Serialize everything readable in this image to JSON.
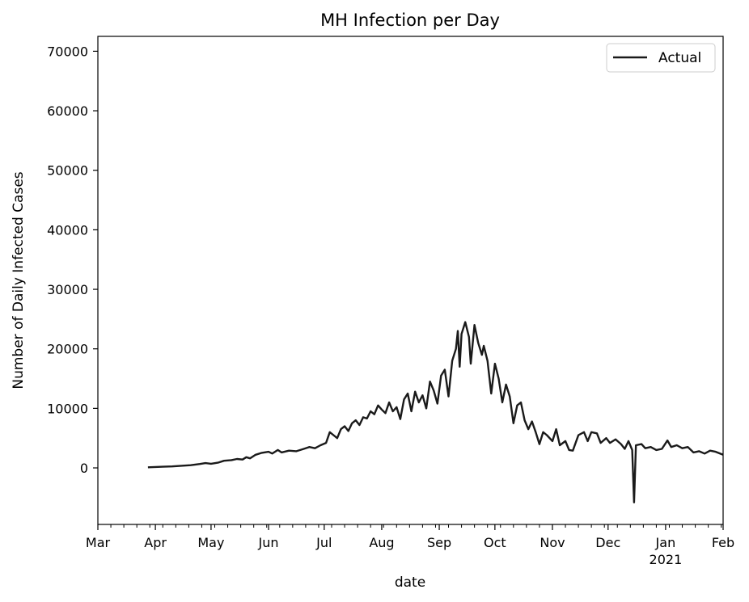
{
  "chart_data": {
    "type": "line",
    "title": "MH Infection per Day",
    "xlabel": "date",
    "ylabel": "Number of Daily Infected Cases",
    "xlim": [
      "2020-03-01",
      "2021-02-01"
    ],
    "ylim": [
      -9500,
      72500
    ],
    "yticks": [
      0,
      10000,
      20000,
      30000,
      40000,
      50000,
      60000,
      70000
    ],
    "ytick_labels": [
      "0",
      "10000",
      "20000",
      "30000",
      "40000",
      "50000",
      "60000",
      "70000"
    ],
    "xticks": [
      {
        "date": "2020-03-01",
        "label": "Mar",
        "sublabel": ""
      },
      {
        "date": "2020-04-01",
        "label": "Apr",
        "sublabel": ""
      },
      {
        "date": "2020-05-01",
        "label": "May",
        "sublabel": ""
      },
      {
        "date": "2020-06-01",
        "label": "Jun",
        "sublabel": ""
      },
      {
        "date": "2020-07-01",
        "label": "Jul",
        "sublabel": ""
      },
      {
        "date": "2020-08-01",
        "label": "Aug",
        "sublabel": ""
      },
      {
        "date": "2020-09-01",
        "label": "Sep",
        "sublabel": ""
      },
      {
        "date": "2020-10-01",
        "label": "Oct",
        "sublabel": ""
      },
      {
        "date": "2020-11-01",
        "label": "Nov",
        "sublabel": ""
      },
      {
        "date": "2020-12-01",
        "label": "Dec",
        "sublabel": ""
      },
      {
        "date": "2021-01-01",
        "label": "Jan",
        "sublabel": "2021"
      },
      {
        "date": "2021-02-01",
        "label": "Feb",
        "sublabel": ""
      }
    ],
    "grid": false,
    "legend_position": "top-right",
    "series": [
      {
        "name": "Actual",
        "color": "#1a1a1a",
        "points": [
          [
            "2020-03-28",
            100
          ],
          [
            "2020-04-01",
            150
          ],
          [
            "2020-04-05",
            200
          ],
          [
            "2020-04-10",
            250
          ],
          [
            "2020-04-15",
            350
          ],
          [
            "2020-04-20",
            450
          ],
          [
            "2020-04-25",
            650
          ],
          [
            "2020-04-28",
            800
          ],
          [
            "2020-05-01",
            700
          ],
          [
            "2020-05-05",
            900
          ],
          [
            "2020-05-08",
            1200
          ],
          [
            "2020-05-12",
            1300
          ],
          [
            "2020-05-15",
            1500
          ],
          [
            "2020-05-18",
            1400
          ],
          [
            "2020-05-20",
            1800
          ],
          [
            "2020-05-22",
            1600
          ],
          [
            "2020-05-25",
            2200
          ],
          [
            "2020-05-28",
            2500
          ],
          [
            "2020-06-01",
            2700
          ],
          [
            "2020-06-03",
            2400
          ],
          [
            "2020-06-06",
            3000
          ],
          [
            "2020-06-08",
            2600
          ],
          [
            "2020-06-12",
            2900
          ],
          [
            "2020-06-16",
            2800
          ],
          [
            "2020-06-20",
            3200
          ],
          [
            "2020-06-23",
            3500
          ],
          [
            "2020-06-26",
            3300
          ],
          [
            "2020-06-29",
            3800
          ],
          [
            "2020-07-02",
            4200
          ],
          [
            "2020-07-04",
            6000
          ],
          [
            "2020-07-06",
            5500
          ],
          [
            "2020-07-08",
            5000
          ],
          [
            "2020-07-10",
            6500
          ],
          [
            "2020-07-12",
            7000
          ],
          [
            "2020-07-14",
            6200
          ],
          [
            "2020-07-16",
            7500
          ],
          [
            "2020-07-18",
            8000
          ],
          [
            "2020-07-20",
            7200
          ],
          [
            "2020-07-22",
            8500
          ],
          [
            "2020-07-24",
            8300
          ],
          [
            "2020-07-26",
            9500
          ],
          [
            "2020-07-28",
            9000
          ],
          [
            "2020-07-30",
            10500
          ],
          [
            "2020-08-01",
            9800
          ],
          [
            "2020-08-03",
            9200
          ],
          [
            "2020-08-05",
            11000
          ],
          [
            "2020-08-07",
            9500
          ],
          [
            "2020-08-09",
            10200
          ],
          [
            "2020-08-11",
            8200
          ],
          [
            "2020-08-13",
            11500
          ],
          [
            "2020-08-15",
            12500
          ],
          [
            "2020-08-17",
            9500
          ],
          [
            "2020-08-19",
            12800
          ],
          [
            "2020-08-21",
            11000
          ],
          [
            "2020-08-23",
            12200
          ],
          [
            "2020-08-25",
            10000
          ],
          [
            "2020-08-27",
            14500
          ],
          [
            "2020-08-29",
            13000
          ],
          [
            "2020-08-31",
            10800
          ],
          [
            "2020-09-02",
            15500
          ],
          [
            "2020-09-04",
            16500
          ],
          [
            "2020-09-06",
            12000
          ],
          [
            "2020-09-08",
            18000
          ],
          [
            "2020-09-10",
            20000
          ],
          [
            "2020-09-11",
            23000
          ],
          [
            "2020-09-12",
            17000
          ],
          [
            "2020-09-13",
            22500
          ],
          [
            "2020-09-15",
            24500
          ],
          [
            "2020-09-17",
            22000
          ],
          [
            "2020-09-18",
            17500
          ],
          [
            "2020-09-20",
            24000
          ],
          [
            "2020-09-22",
            21000
          ],
          [
            "2020-09-24",
            19000
          ],
          [
            "2020-09-25",
            20500
          ],
          [
            "2020-09-27",
            18000
          ],
          [
            "2020-09-29",
            12500
          ],
          [
            "2020-10-01",
            17500
          ],
          [
            "2020-10-03",
            15000
          ],
          [
            "2020-10-05",
            11000
          ],
          [
            "2020-10-07",
            14000
          ],
          [
            "2020-10-09",
            12000
          ],
          [
            "2020-10-11",
            7500
          ],
          [
            "2020-10-13",
            10500
          ],
          [
            "2020-10-15",
            11000
          ],
          [
            "2020-10-17",
            8000
          ],
          [
            "2020-10-19",
            6500
          ],
          [
            "2020-10-21",
            7800
          ],
          [
            "2020-10-23",
            6000
          ],
          [
            "2020-10-25",
            4000
          ],
          [
            "2020-10-27",
            6000
          ],
          [
            "2020-10-29",
            5500
          ],
          [
            "2020-11-01",
            4500
          ],
          [
            "2020-11-03",
            6500
          ],
          [
            "2020-11-05",
            3800
          ],
          [
            "2020-11-08",
            4500
          ],
          [
            "2020-11-10",
            3000
          ],
          [
            "2020-11-12",
            2900
          ],
          [
            "2020-11-15",
            5500
          ],
          [
            "2020-11-18",
            6000
          ],
          [
            "2020-11-20",
            4500
          ],
          [
            "2020-11-22",
            6000
          ],
          [
            "2020-11-25",
            5800
          ],
          [
            "2020-11-27",
            4200
          ],
          [
            "2020-11-30",
            5000
          ],
          [
            "2020-12-02",
            4200
          ],
          [
            "2020-12-05",
            4800
          ],
          [
            "2020-12-08",
            4000
          ],
          [
            "2020-12-10",
            3200
          ],
          [
            "2020-12-12",
            4500
          ],
          [
            "2020-12-14",
            3000
          ],
          [
            "2020-12-15",
            -5800
          ],
          [
            "2020-12-16",
            3800
          ],
          [
            "2020-12-19",
            4000
          ],
          [
            "2020-12-21",
            3300
          ],
          [
            "2020-12-24",
            3500
          ],
          [
            "2020-12-27",
            3000
          ],
          [
            "2020-12-30",
            3200
          ],
          [
            "2021-01-02",
            4600
          ],
          [
            "2021-01-04",
            3500
          ],
          [
            "2021-01-07",
            3800
          ],
          [
            "2021-01-10",
            3300
          ],
          [
            "2021-01-13",
            3500
          ],
          [
            "2021-01-16",
            2600
          ],
          [
            "2021-01-19",
            2800
          ],
          [
            "2021-01-22",
            2400
          ],
          [
            "2021-01-25",
            2900
          ],
          [
            "2021-01-28",
            2700
          ],
          [
            "2021-02-01",
            2200
          ]
        ]
      }
    ]
  }
}
